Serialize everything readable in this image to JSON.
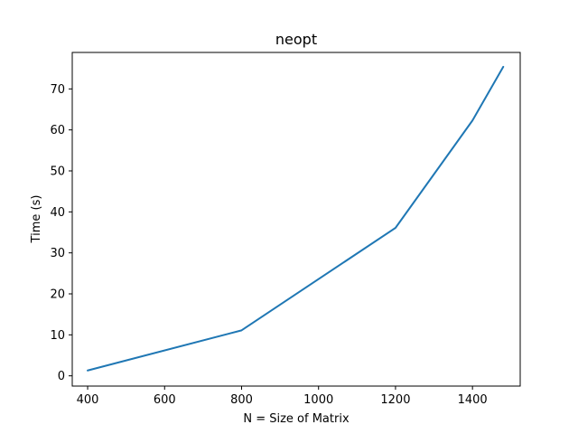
{
  "chart_data": {
    "type": "line",
    "title": "neopt",
    "xlabel": "N = Size of Matrix",
    "ylabel": "Time (s)",
    "xlim": [
      360,
      1524
    ],
    "ylim": [
      -2.5,
      78.9
    ],
    "xticks": [
      400,
      600,
      800,
      1000,
      1200,
      1400
    ],
    "yticks": [
      0,
      10,
      20,
      30,
      40,
      50,
      60,
      70
    ],
    "xtick_labels": [
      "400",
      "600",
      "800",
      "1000",
      "1200",
      "1400"
    ],
    "ytick_labels": [
      "0",
      "10",
      "20",
      "30",
      "40",
      "50",
      "60",
      "70"
    ],
    "grid": false,
    "series": [
      {
        "color": "#1f77b4",
        "x": [
          400,
          800,
          1200,
          1400,
          1480
        ],
        "y": [
          1.3,
          11.1,
          36.1,
          62.3,
          75.4
        ]
      }
    ]
  }
}
